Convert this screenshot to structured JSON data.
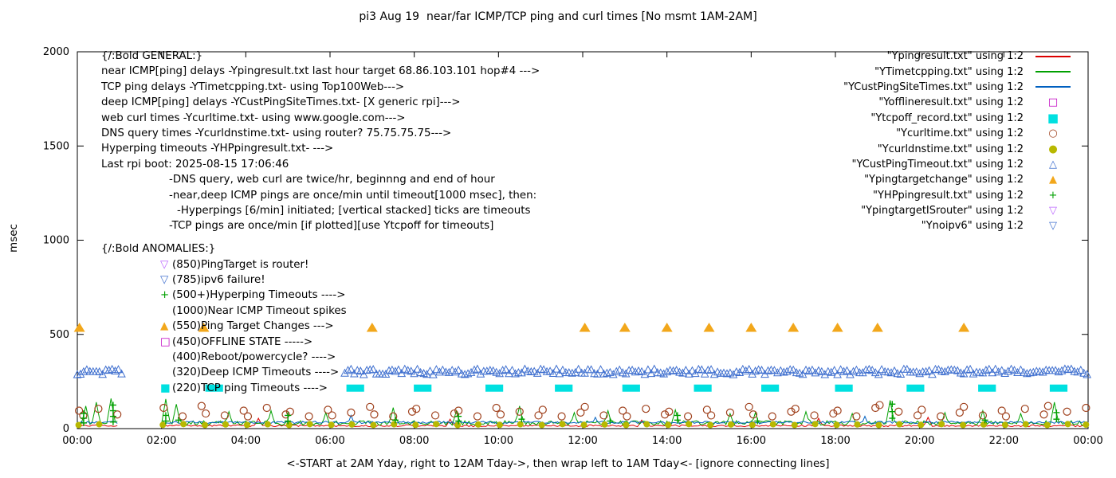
{
  "title": "pi3 Aug 19  near/far ICMP/TCP ping and curl times [No msmt 1AM-2AM]",
  "ylabel": "msec",
  "xlabel": "<-START at 2AM Yday, right to 12AM Tday->, then wrap left to 1AM Tday<- [ignore connecting lines]",
  "legend": {
    "items": [
      {
        "name": "Ypingresult",
        "label": "\"Ypingresult.txt\" using 1:2",
        "marker": "line",
        "color": "#dd0000"
      },
      {
        "name": "YTimetcpping",
        "label": "\"YTimetcpping.txt\" using 1:2",
        "marker": "line",
        "color": "#00a000"
      },
      {
        "name": "YCustPingSiteTimes",
        "label": "\"YCustPingSiteTimes.txt\" using 1:2",
        "marker": "line",
        "color": "#0060c0"
      },
      {
        "name": "Yofflineresult",
        "label": "\"Yofflineresult.txt\" using 1:2",
        "marker": "open-square",
        "color": "#c000c0"
      },
      {
        "name": "Ytcpoff_record",
        "label": "\"Ytcpoff_record.txt\" using 1:2",
        "marker": "filled-square",
        "color": "#00e0e0"
      },
      {
        "name": "Ycurltime",
        "label": "\"Ycurltime.txt\" using 1:2",
        "marker": "open-circle",
        "color": "#a0421e"
      },
      {
        "name": "Ycurldnstime",
        "label": "\"Ycurldnstime.txt\" using 1:2",
        "marker": "filled-circle",
        "color": "#b8b800"
      },
      {
        "name": "YCustPingTimeout",
        "label": "\"YCustPingTimeout.txt\" using 1:2",
        "marker": "open-triangle-up",
        "color": "#4070cf"
      },
      {
        "name": "Ypingtargetchange",
        "label": "\"Ypingtargetchange\" using 1:2",
        "marker": "filled-triangle-up",
        "color": "#f2a71b"
      },
      {
        "name": "YHPpingresult",
        "label": "\"YHPpingresult.txt\" using 1:2",
        "marker": "plus",
        "color": "#00a000"
      },
      {
        "name": "YpingtargetISrouter",
        "label": "\"YpingtargetISrouter\" using 1:2",
        "marker": "open-triangle-down",
        "color": "#bb66ff"
      },
      {
        "name": "Ynoipv6",
        "label": "\"Ynoipv6\" using 1:2",
        "marker": "open-triangle-down",
        "color": "#4070cf"
      }
    ]
  },
  "annotations": {
    "general": {
      "lines": [
        {
          "text": "{/:Bold GENERAL:}",
          "indent": 0
        },
        {
          "text": "near ICMP[ping] delays -Ypingresult.txt last hour target 68.86.103.101 hop#4 --->",
          "indent": 0
        },
        {
          "text": "TCP ping delays -YTimetcpping.txt- using Top100Web--->",
          "indent": 0
        },
        {
          "text": "deep ICMP[ping] delays -YCustPingSiteTimes.txt- [X generic rpi]--->",
          "indent": 0
        },
        {
          "text": "web curl times -Ycurltime.txt- using www.google.com--->",
          "indent": 0
        },
        {
          "text": "DNS query times -Ycurldnstime.txt- using router? 75.75.75.75--->",
          "indent": 0
        },
        {
          "text": "Hyperping timeouts -YHPpingresult.txt- --->",
          "indent": 0
        },
        {
          "text": "Last rpi boot: 2025-08-15 17:06:46",
          "indent": 0
        },
        {
          "text": "-DNS query, web curl are twice/hr, beginnng and end of hour",
          "indent": 85
        },
        {
          "text": "-near,deep ICMP pings are once/min until timeout[1000 msec], then:",
          "indent": 85
        },
        {
          "text": "-Hyperpings [6/min] initiated; [vertical stacked] ticks are timeouts",
          "indent": 95
        },
        {
          "text": "-TCP pings are once/min [if plotted][use Ytcpoff for timeouts]",
          "indent": 85
        }
      ]
    },
    "anomalies": {
      "header": "{/:Bold ANOMALIES:}",
      "items": [
        {
          "marker": "open-triangle-down",
          "color": "#bb66ff",
          "text": "(850)PingTarget is router!"
        },
        {
          "marker": "open-triangle-down",
          "color": "#4070cf",
          "text": "(785)ipv6 failure!"
        },
        {
          "marker": "plus",
          "color": "#00a000",
          "text": "(500+)Hyperping Timeouts ---->"
        },
        {
          "marker": "none",
          "color": "#000000",
          "text": "(1000)Near ICMP Timeout spikes"
        },
        {
          "marker": "filled-triangle-up",
          "color": "#f2a71b",
          "text": "(550)Ping Target Changes --->"
        },
        {
          "marker": "open-square",
          "color": "#c000c0",
          "text": "(450)OFFLINE STATE ----->"
        },
        {
          "marker": "none",
          "color": "#000000",
          "text": "(400)Reboot/powercycle? ---->"
        },
        {
          "marker": "none",
          "color": "#000000",
          "text": "(320)Deep ICMP Timeouts ---->"
        },
        {
          "marker": "filled-square",
          "color": "#00e0e0",
          "text": "(220)TCP ping Timeouts ---->"
        }
      ]
    }
  },
  "chart_data": {
    "type": "mixed-time-series",
    "x_unit": "hours",
    "x_ticks": [
      "00:00",
      "02:00",
      "04:00",
      "06:00",
      "08:00",
      "10:00",
      "12:00",
      "14:00",
      "16:00",
      "18:00",
      "20:00",
      "22:00",
      "00:00"
    ],
    "x_tick_hours": [
      0,
      2,
      4,
      6,
      8,
      10,
      12,
      14,
      16,
      18,
      20,
      22,
      24
    ],
    "y_ticks": [
      0,
      500,
      1000,
      1500,
      2000
    ],
    "y_range": [
      0,
      2000
    ],
    "measurement_gap_hours": [
      1,
      2
    ],
    "series": [
      {
        "name": "Ypingresult.txt",
        "style": "line",
        "color": "#dd0000",
        "base": 15,
        "noise": 5,
        "spikes": [
          [
            4.3,
            55
          ],
          [
            8.85,
            50
          ],
          [
            13.4,
            45
          ],
          [
            17.6,
            55
          ],
          [
            20.2,
            60
          ]
        ]
      },
      {
        "name": "YTimetcpping.txt",
        "style": "line",
        "color": "#00a000",
        "base": 30,
        "noise": 12,
        "spikes": [
          [
            0.2,
            120
          ],
          [
            0.45,
            140
          ],
          [
            0.8,
            160
          ],
          [
            2.1,
            155
          ],
          [
            2.35,
            130
          ],
          [
            3.6,
            90
          ],
          [
            4.6,
            95
          ],
          [
            5.9,
            85
          ],
          [
            7.5,
            110
          ],
          [
            9.0,
            95
          ],
          [
            10.5,
            120
          ],
          [
            11.8,
            85
          ],
          [
            12.6,
            95
          ],
          [
            14.2,
            100
          ],
          [
            15.5,
            80
          ],
          [
            16.1,
            85
          ],
          [
            17.3,
            90
          ],
          [
            18.4,
            80
          ],
          [
            19.3,
            150
          ],
          [
            20.6,
            85
          ],
          [
            21.5,
            95
          ],
          [
            22.4,
            80
          ],
          [
            23.2,
            140
          ]
        ]
      },
      {
        "name": "YCustPingSiteTimes.txt",
        "style": "line",
        "color": "#0060c0",
        "base": 33,
        "noise": 6,
        "spikes": [
          [
            6.5,
            70
          ],
          [
            12.3,
            60
          ],
          [
            18.7,
            65
          ]
        ]
      },
      {
        "name": "Yofflineresult.txt",
        "style": "scatter",
        "marker": "open-square",
        "color": "#c000c0",
        "value": 450,
        "points": []
      },
      {
        "name": "Ytcpoff_record.txt",
        "style": "bar",
        "color": "#00e0e0",
        "value": 215,
        "bar_width_hours": 0.42,
        "times": [
          3.25,
          6.6,
          8.2,
          9.9,
          11.55,
          13.15,
          14.85,
          16.45,
          18.2,
          19.9,
          21.6,
          23.3
        ]
      },
      {
        "name": "Ycurltime.txt",
        "style": "scatter",
        "marker": "open-circle",
        "color": "#a0421e",
        "points": [
          [
            0.04,
            95
          ],
          [
            0.14,
            70
          ],
          [
            0.5,
            105
          ],
          [
            0.95,
            75
          ],
          [
            2.05,
            110
          ],
          [
            2.5,
            65
          ],
          [
            2.95,
            120
          ],
          [
            3.05,
            80
          ],
          [
            3.5,
            70
          ],
          [
            3.95,
            95
          ],
          [
            4.05,
            65
          ],
          [
            4.5,
            110
          ],
          [
            4.95,
            75
          ],
          [
            5.05,
            90
          ],
          [
            5.5,
            65
          ],
          [
            5.95,
            100
          ],
          [
            6.05,
            70
          ],
          [
            6.5,
            85
          ],
          [
            6.95,
            115
          ],
          [
            7.05,
            75
          ],
          [
            7.5,
            65
          ],
          [
            7.95,
            90
          ],
          [
            8.05,
            105
          ],
          [
            8.5,
            70
          ],
          [
            8.95,
            80
          ],
          [
            9.05,
            95
          ],
          [
            9.5,
            65
          ],
          [
            9.95,
            110
          ],
          [
            10.05,
            75
          ],
          [
            10.5,
            90
          ],
          [
            10.95,
            70
          ],
          [
            11.05,
            100
          ],
          [
            11.5,
            65
          ],
          [
            11.95,
            85
          ],
          [
            12.05,
            115
          ],
          [
            12.5,
            70
          ],
          [
            12.95,
            95
          ],
          [
            13.05,
            65
          ],
          [
            13.5,
            105
          ],
          [
            13.95,
            75
          ],
          [
            14.05,
            90
          ],
          [
            14.5,
            65
          ],
          [
            14.95,
            100
          ],
          [
            15.05,
            70
          ],
          [
            15.5,
            85
          ],
          [
            15.95,
            115
          ],
          [
            16.05,
            75
          ],
          [
            16.5,
            65
          ],
          [
            16.95,
            90
          ],
          [
            17.05,
            105
          ],
          [
            17.5,
            70
          ],
          [
            17.95,
            80
          ],
          [
            18.05,
            95
          ],
          [
            18.5,
            65
          ],
          [
            18.95,
            110
          ],
          [
            19.05,
            125
          ],
          [
            19.5,
            90
          ],
          [
            19.95,
            70
          ],
          [
            20.05,
            100
          ],
          [
            20.5,
            65
          ],
          [
            20.95,
            85
          ],
          [
            21.05,
            115
          ],
          [
            21.5,
            70
          ],
          [
            21.95,
            95
          ],
          [
            22.05,
            65
          ],
          [
            22.5,
            105
          ],
          [
            22.95,
            75
          ],
          [
            23.05,
            120
          ],
          [
            23.5,
            90
          ],
          [
            23.95,
            110
          ]
        ]
      },
      {
        "name": "Ycurldnstime.txt",
        "style": "scatter",
        "marker": "filled-circle",
        "color": "#b8b800",
        "points": [
          [
            0.03,
            19
          ],
          [
            0.52,
            23
          ],
          [
            2.03,
            20
          ],
          [
            2.52,
            24
          ],
          [
            3.03,
            19
          ],
          [
            3.52,
            22
          ],
          [
            4.03,
            20
          ],
          [
            4.52,
            23
          ],
          [
            5.03,
            19
          ],
          [
            5.52,
            24
          ],
          [
            6.03,
            20
          ],
          [
            6.52,
            22
          ],
          [
            7.03,
            19
          ],
          [
            7.52,
            23
          ],
          [
            8.03,
            20
          ],
          [
            8.52,
            24
          ],
          [
            9.03,
            19
          ],
          [
            9.52,
            22
          ],
          [
            10.03,
            20
          ],
          [
            10.52,
            23
          ],
          [
            11.03,
            19
          ],
          [
            11.52,
            24
          ],
          [
            12.03,
            20
          ],
          [
            12.52,
            22
          ],
          [
            13.03,
            19
          ],
          [
            13.52,
            23
          ],
          [
            14.03,
            20
          ],
          [
            14.52,
            24
          ],
          [
            15.03,
            19
          ],
          [
            15.52,
            22
          ],
          [
            16.03,
            20
          ],
          [
            16.52,
            23
          ],
          [
            17.03,
            19
          ],
          [
            17.52,
            24
          ],
          [
            18.03,
            20
          ],
          [
            18.52,
            22
          ],
          [
            19.03,
            19
          ],
          [
            19.52,
            23
          ],
          [
            20.03,
            20
          ],
          [
            20.52,
            24
          ],
          [
            21.03,
            19
          ],
          [
            21.52,
            22
          ],
          [
            22.03,
            20
          ],
          [
            22.52,
            23
          ],
          [
            23.03,
            19
          ],
          [
            23.52,
            24
          ],
          [
            23.95,
            21
          ]
        ]
      },
      {
        "name": "YCustPingTimeout.txt",
        "style": "triangle-band",
        "color": "#4070cf",
        "value": 300,
        "jitter": 15,
        "spacing_hours": 0.075,
        "ranges": [
          [
            0,
            1.05
          ],
          [
            6.35,
            24
          ]
        ]
      },
      {
        "name": "Ypingtargetchange",
        "style": "scatter",
        "marker": "filled-triangle-up",
        "color": "#f2a71b",
        "value": 535,
        "times": [
          0.05,
          3.0,
          7.0,
          12.05,
          13.0,
          14.0,
          15.0,
          16.0,
          17.0,
          18.05,
          19.0,
          21.05
        ]
      },
      {
        "name": "YHPpingresult.txt",
        "style": "scatter",
        "marker": "plus",
        "color": "#00a000",
        "points": [
          [
            0.15,
            30
          ],
          [
            0.15,
            55
          ],
          [
            0.15,
            80
          ],
          [
            0.85,
            35
          ],
          [
            0.85,
            65
          ],
          [
            0.85,
            95
          ],
          [
            0.85,
            125
          ],
          [
            2.1,
            40
          ],
          [
            2.1,
            70
          ],
          [
            2.4,
            45
          ],
          [
            5.0,
            40
          ],
          [
            5.0,
            70
          ],
          [
            7.55,
            45
          ],
          [
            9.05,
            40
          ],
          [
            9.05,
            65
          ],
          [
            10.55,
            50
          ],
          [
            12.65,
            40
          ],
          [
            14.25,
            45
          ],
          [
            14.25,
            70
          ],
          [
            16.15,
            40
          ],
          [
            19.35,
            55
          ],
          [
            19.35,
            90
          ],
          [
            19.35,
            130
          ],
          [
            21.55,
            45
          ],
          [
            23.25,
            50
          ],
          [
            23.25,
            85
          ]
        ]
      },
      {
        "name": "YpingtargetISrouter",
        "style": "scatter",
        "marker": "open-triangle-down",
        "color": "#bb66ff",
        "value": 850,
        "points": []
      },
      {
        "name": "Ynoipv6",
        "style": "scatter",
        "marker": "open-triangle-down",
        "color": "#4070cf",
        "value": 785,
        "points": []
      }
    ]
  }
}
